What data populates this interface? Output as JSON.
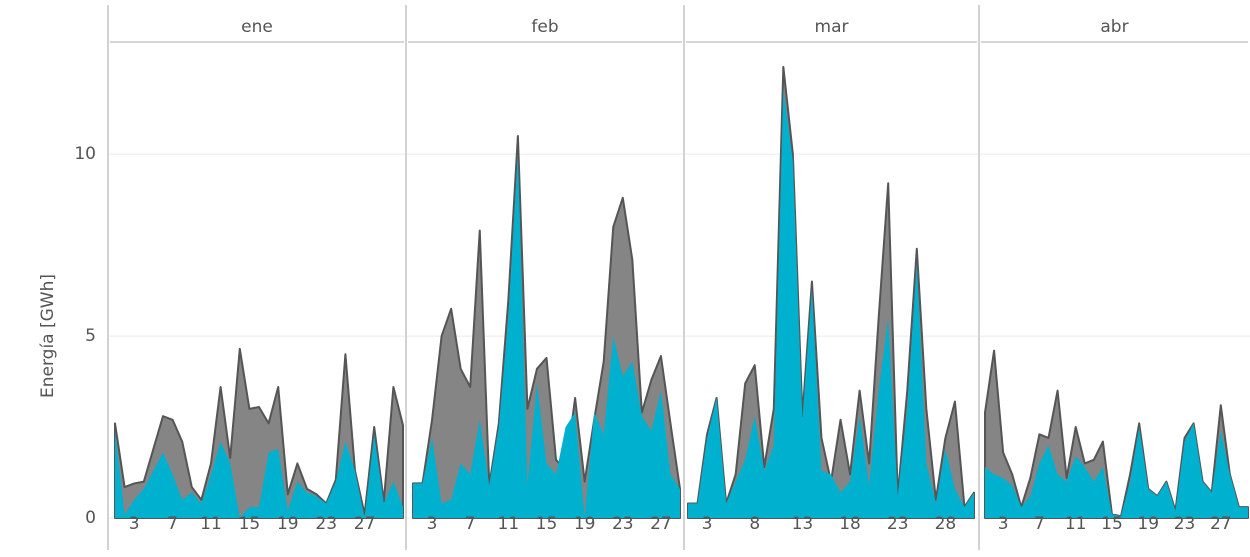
{
  "chart_data": [
    {
      "type": "area",
      "title": "ene",
      "ylabel": "Energía [GWh]",
      "ylim": [
        0,
        13
      ],
      "yticks": [
        0,
        5,
        10
      ],
      "grid": true,
      "x": [
        1,
        2,
        3,
        4,
        5,
        6,
        7,
        8,
        9,
        10,
        11,
        12,
        13,
        14,
        15,
        16,
        17,
        18,
        19,
        20,
        21,
        22,
        23,
        24,
        25,
        26,
        27,
        28,
        29,
        30,
        31
      ],
      "xlim": [
        1,
        31
      ],
      "xticks": [
        3,
        7,
        11,
        15,
        19,
        23,
        27
      ],
      "series": [
        {
          "color": "#858585",
          "values": [
            2.6,
            0.85,
            0.95,
            1.0,
            1.9,
            2.8,
            2.7,
            2.1,
            0.85,
            0.5,
            1.5,
            3.6,
            1.65,
            4.65,
            3.0,
            3.05,
            2.6,
            3.6,
            0.65,
            1.5,
            0.8,
            0.65,
            0.4,
            1.05,
            4.5,
            1.3,
            0.1,
            2.5,
            0.45,
            3.6,
            2.55
          ]
        },
        {
          "color": "#00b0cf",
          "values": [
            2.4,
            0.1,
            0.5,
            0.8,
            1.3,
            1.8,
            1.2,
            0.5,
            0.7,
            0.4,
            1.2,
            2.1,
            1.5,
            0.0,
            0.3,
            0.3,
            1.8,
            1.9,
            0.2,
            1.0,
            0.7,
            0.6,
            0.4,
            1.0,
            2.1,
            1.3,
            0.0,
            2.3,
            0.4,
            1.0,
            0.3
          ]
        }
      ]
    },
    {
      "type": "area",
      "title": "feb",
      "x": [
        1,
        2,
        3,
        4,
        5,
        6,
        7,
        8,
        9,
        10,
        11,
        12,
        13,
        14,
        15,
        16,
        17,
        18,
        19,
        20,
        21,
        22,
        23,
        24,
        25,
        26,
        27,
        28,
        29
      ],
      "xlim": [
        1,
        29
      ],
      "xticks": [
        3,
        7,
        11,
        15,
        19,
        23,
        27
      ],
      "series": [
        {
          "color": "#858585",
          "values": [
            0.95,
            0.95,
            2.7,
            5.0,
            5.75,
            4.1,
            3.6,
            7.9,
            0.9,
            2.6,
            6.0,
            10.5,
            3.0,
            4.1,
            4.4,
            1.6,
            1.3,
            3.3,
            1.0,
            2.7,
            4.3,
            8.0,
            8.8,
            7.1,
            2.9,
            3.8,
            4.45,
            2.6,
            0.8
          ]
        },
        {
          "color": "#00b0cf",
          "values": [
            0.95,
            0.95,
            2.2,
            0.4,
            0.5,
            1.5,
            1.2,
            2.7,
            0.9,
            2.5,
            5.5,
            10.0,
            0.9,
            3.7,
            1.5,
            1.2,
            2.5,
            2.9,
            0.0,
            2.9,
            2.3,
            5.0,
            3.9,
            4.3,
            2.8,
            2.4,
            3.5,
            1.2,
            0.8
          ]
        }
      ]
    },
    {
      "type": "area",
      "title": "mar",
      "x": [
        1,
        2,
        3,
        4,
        5,
        6,
        7,
        8,
        9,
        10,
        11,
        12,
        13,
        14,
        15,
        16,
        17,
        18,
        19,
        20,
        21,
        22,
        23,
        24,
        25,
        26,
        27,
        28,
        29,
        30,
        31
      ],
      "xlim": [
        1,
        31
      ],
      "xticks": [
        3,
        8,
        13,
        18,
        23,
        28
      ],
      "series": [
        {
          "color": "#858585",
          "values": [
            0.4,
            0.4,
            2.3,
            3.3,
            0.4,
            1.2,
            3.7,
            4.2,
            1.4,
            3.0,
            12.4,
            10.0,
            2.8,
            6.5,
            2.2,
            1.0,
            2.7,
            1.2,
            3.5,
            1.5,
            5.5,
            9.2,
            0.6,
            3.5,
            7.4,
            3.0,
            0.5,
            2.2,
            3.2,
            0.3,
            0.7
          ]
        },
        {
          "color": "#00b0cf",
          "values": [
            0.4,
            0.4,
            2.2,
            3.3,
            0.4,
            1.0,
            1.6,
            2.8,
            1.3,
            2.0,
            11.8,
            9.8,
            2.7,
            6.3,
            1.3,
            1.2,
            0.7,
            1.0,
            2.8,
            0.9,
            3.5,
            5.5,
            0.6,
            3.0,
            7.0,
            1.5,
            0.4,
            1.9,
            0.8,
            0.3,
            0.7
          ]
        }
      ]
    },
    {
      "type": "area",
      "title": "abr",
      "x": [
        1,
        2,
        3,
        4,
        5,
        6,
        7,
        8,
        9,
        10,
        11,
        12,
        13,
        14,
        15,
        16,
        17,
        18,
        19,
        20,
        21,
        22,
        23,
        24,
        25,
        26,
        27,
        28,
        29,
        30
      ],
      "xlim": [
        1,
        30
      ],
      "xticks": [
        3,
        7,
        11,
        15,
        19,
        23,
        27
      ],
      "series": [
        {
          "color": "#858585",
          "values": [
            2.9,
            4.6,
            1.8,
            1.2,
            0.3,
            1.1,
            2.3,
            2.2,
            3.5,
            1.1,
            2.5,
            1.5,
            1.6,
            2.1,
            0.1,
            0.05,
            1.2,
            2.6,
            0.8,
            0.6,
            1.0,
            0.2,
            2.2,
            2.6,
            1.0,
            0.7,
            3.1,
            1.2,
            0.3,
            0.3
          ]
        },
        {
          "color": "#00b0cf",
          "values": [
            1.4,
            1.2,
            1.1,
            0.9,
            0.3,
            0.6,
            1.5,
            2.0,
            1.2,
            1.0,
            1.7,
            1.4,
            1.0,
            1.4,
            0.1,
            0.05,
            1.0,
            2.5,
            0.8,
            0.6,
            1.0,
            0.2,
            2.1,
            2.6,
            1.0,
            0.7,
            2.4,
            1.2,
            0.3,
            0.3
          ]
        }
      ]
    }
  ]
}
